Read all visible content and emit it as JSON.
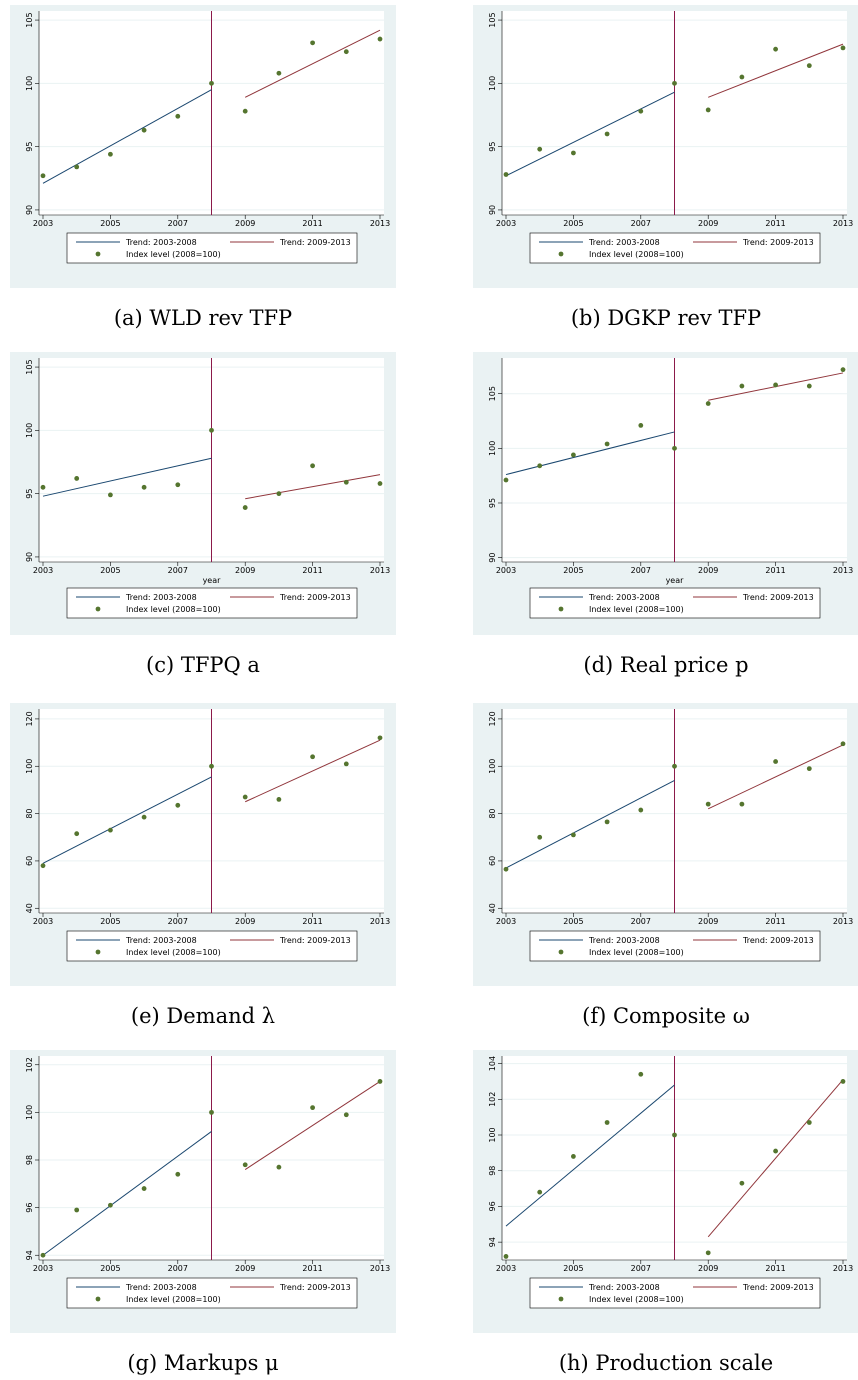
{
  "chart_data": [
    {
      "type": "scatter",
      "caption": "(a) WLD rev TFP",
      "xlim": [
        2003,
        2013
      ],
      "xticks": [
        2003,
        2005,
        2007,
        2009,
        2011,
        2013
      ],
      "ylim": [
        89.6,
        105.4
      ],
      "yticks": [
        90,
        95,
        100,
        105
      ],
      "grid": true,
      "vline": 2008,
      "vline_color": "#8b1a4a",
      "series": [
        {
          "name": "Trend: 2003-2008",
          "type": "line",
          "color": "#1a476f",
          "x": [
            2003,
            2008
          ],
          "values": [
            92.1,
            99.5
          ]
        },
        {
          "name": "Trend: 2009-2013",
          "type": "line",
          "color": "#90353b",
          "x": [
            2009,
            2013
          ],
          "values": [
            98.9,
            104.2
          ]
        },
        {
          "name": "Index level (2008=100)",
          "type": "scatter",
          "color": "#55752f",
          "x": [
            2003,
            2004,
            2005,
            2006,
            2007,
            2008,
            2009,
            2010,
            2011,
            2012,
            2013
          ],
          "values": [
            92.7,
            93.4,
            94.4,
            96.3,
            97.4,
            100,
            97.8,
            100.8,
            103.2,
            102.5,
            103.5
          ]
        }
      ]
    },
    {
      "type": "scatter",
      "caption": "(b) DGKP rev TFP",
      "xlim": [
        2003,
        2013
      ],
      "xticks": [
        2003,
        2005,
        2007,
        2009,
        2011,
        2013
      ],
      "ylim": [
        89.6,
        105.4
      ],
      "yticks": [
        90,
        95,
        100,
        105
      ],
      "grid": true,
      "vline": 2008,
      "vline_color": "#8b1a4a",
      "series": [
        {
          "name": "Trend: 2003-2008",
          "type": "line",
          "color": "#1a476f",
          "x": [
            2003,
            2008
          ],
          "values": [
            92.7,
            99.3
          ]
        },
        {
          "name": "Trend: 2009-2013",
          "type": "line",
          "color": "#90353b",
          "x": [
            2009,
            2013
          ],
          "values": [
            98.9,
            103.1
          ]
        },
        {
          "name": "Index level (2008=100)",
          "type": "scatter",
          "color": "#55752f",
          "x": [
            2003,
            2004,
            2005,
            2006,
            2007,
            2008,
            2009,
            2010,
            2011,
            2012,
            2013
          ],
          "values": [
            92.8,
            94.8,
            94.5,
            96.0,
            97.8,
            100,
            97.9,
            100.5,
            102.7,
            101.4,
            102.8
          ]
        }
      ]
    },
    {
      "type": "scatter",
      "caption": "(c) TFPQ a",
      "x_label": "year",
      "xlim": [
        2003,
        2013
      ],
      "xticks": [
        2003,
        2005,
        2007,
        2009,
        2011,
        2013
      ],
      "ylim": [
        89.6,
        105.4
      ],
      "yticks": [
        90,
        95,
        100,
        105
      ],
      "grid": true,
      "vline": 2008,
      "vline_color": "#8b1a4a",
      "series": [
        {
          "name": "Trend: 2003-2008",
          "type": "line",
          "color": "#1a476f",
          "x": [
            2003,
            2008
          ],
          "values": [
            94.8,
            97.8
          ]
        },
        {
          "name": "Trend: 2009-2013",
          "type": "line",
          "color": "#90353b",
          "x": [
            2009,
            2013
          ],
          "values": [
            94.6,
            96.5
          ]
        },
        {
          "name": "Index level (2008=100)",
          "type": "scatter",
          "color": "#55752f",
          "x": [
            2003,
            2004,
            2005,
            2006,
            2007,
            2008,
            2009,
            2010,
            2011,
            2012,
            2013
          ],
          "values": [
            95.5,
            96.2,
            94.9,
            95.5,
            95.7,
            100,
            93.9,
            95.0,
            97.2,
            95.9,
            95.8
          ]
        }
      ]
    },
    {
      "type": "scatter",
      "caption": "(d) Real price p",
      "x_label": "year",
      "xlim": [
        2003,
        2013
      ],
      "xticks": [
        2003,
        2005,
        2007,
        2009,
        2011,
        2013
      ],
      "ylim": [
        89.6,
        107.9
      ],
      "yticks": [
        90,
        95,
        100,
        105
      ],
      "grid": true,
      "vline": 2008,
      "vline_color": "#8b1a4a",
      "series": [
        {
          "name": "Trend: 2003-2008",
          "type": "line",
          "color": "#1a476f",
          "x": [
            2003,
            2008
          ],
          "values": [
            97.6,
            101.5
          ]
        },
        {
          "name": "Trend: 2009-2013",
          "type": "line",
          "color": "#90353b",
          "x": [
            2009,
            2013
          ],
          "values": [
            104.4,
            106.9
          ]
        },
        {
          "name": "Index level (2008=100)",
          "type": "scatter",
          "color": "#55752f",
          "x": [
            2003,
            2004,
            2005,
            2006,
            2007,
            2008,
            2009,
            2010,
            2011,
            2012,
            2013
          ],
          "values": [
            97.1,
            98.4,
            99.4,
            100.4,
            102.1,
            100,
            104.1,
            105.7,
            105.8,
            105.7,
            107.2
          ]
        }
      ]
    },
    {
      "type": "scatter",
      "caption": "(e) Demand λ",
      "xlim": [
        2003,
        2013
      ],
      "xticks": [
        2003,
        2005,
        2007,
        2009,
        2011,
        2013
      ],
      "ylim": [
        38,
        122.5
      ],
      "yticks": [
        40,
        60,
        80,
        100,
        120
      ],
      "grid": true,
      "vline": 2008,
      "vline_color": "#8b1a4a",
      "series": [
        {
          "name": "Trend: 2003-2008",
          "type": "line",
          "color": "#1a476f",
          "x": [
            2003,
            2008
          ],
          "values": [
            59,
            95.5
          ]
        },
        {
          "name": "Trend: 2009-2013",
          "type": "line",
          "color": "#90353b",
          "x": [
            2009,
            2013
          ],
          "values": [
            85,
            111
          ]
        },
        {
          "name": "Index level (2008=100)",
          "type": "scatter",
          "color": "#55752f",
          "x": [
            2003,
            2004,
            2005,
            2006,
            2007,
            2008,
            2009,
            2010,
            2011,
            2012,
            2013
          ],
          "values": [
            58,
            71.5,
            73,
            78.5,
            83.5,
            100,
            87,
            86,
            104,
            101,
            112
          ]
        }
      ]
    },
    {
      "type": "scatter",
      "caption": "(f) Composite ω",
      "xlim": [
        2003,
        2013
      ],
      "xticks": [
        2003,
        2005,
        2007,
        2009,
        2011,
        2013
      ],
      "ylim": [
        38,
        122.5
      ],
      "yticks": [
        40,
        60,
        80,
        100,
        120
      ],
      "grid": true,
      "vline": 2008,
      "vline_color": "#8b1a4a",
      "series": [
        {
          "name": "Trend: 2003-2008",
          "type": "line",
          "color": "#1a476f",
          "x": [
            2003,
            2008
          ],
          "values": [
            57,
            94
          ]
        },
        {
          "name": "Trend: 2009-2013",
          "type": "line",
          "color": "#90353b",
          "x": [
            2009,
            2013
          ],
          "values": [
            82,
            109
          ]
        },
        {
          "name": "Index level (2008=100)",
          "type": "scatter",
          "color": "#55752f",
          "x": [
            2003,
            2004,
            2005,
            2006,
            2007,
            2008,
            2009,
            2010,
            2011,
            2012,
            2013
          ],
          "values": [
            56.5,
            70,
            71,
            76.5,
            81.5,
            100,
            84,
            84,
            102,
            99,
            109.5
          ]
        }
      ]
    },
    {
      "type": "scatter",
      "caption": "(g) Markups μ",
      "xlim": [
        2003,
        2013
      ],
      "xticks": [
        2003,
        2005,
        2007,
        2009,
        2011,
        2013
      ],
      "ylim": [
        93.8,
        102.2
      ],
      "yticks": [
        94,
        96,
        98,
        100,
        102
      ],
      "grid": true,
      "vline": 2008,
      "vline_color": "#8b1a4a",
      "series": [
        {
          "name": "Trend: 2003-2008",
          "type": "line",
          "color": "#1a476f",
          "x": [
            2003,
            2008
          ],
          "values": [
            94.0,
            99.2
          ]
        },
        {
          "name": "Trend: 2009-2013",
          "type": "line",
          "color": "#90353b",
          "x": [
            2009,
            2013
          ],
          "values": [
            97.6,
            101.3
          ]
        },
        {
          "name": "Index level (2008=100)",
          "type": "scatter",
          "color": "#55752f",
          "x": [
            2003,
            2004,
            2005,
            2006,
            2007,
            2008,
            2009,
            2010,
            2011,
            2012,
            2013
          ],
          "values": [
            94.0,
            95.9,
            96.1,
            96.8,
            97.4,
            100,
            97.8,
            97.7,
            100.2,
            99.9,
            101.3
          ]
        }
      ]
    },
    {
      "type": "scatter",
      "caption": "(h) Production scale",
      "xlim": [
        2003,
        2013
      ],
      "xticks": [
        2003,
        2005,
        2007,
        2009,
        2011,
        2013
      ],
      "ylim": [
        93,
        104.2
      ],
      "yticks": [
        94,
        96,
        98,
        100,
        102,
        104
      ],
      "grid": true,
      "vline": 2008,
      "vline_color": "#8b1a4a",
      "series": [
        {
          "name": "Trend: 2003-2008",
          "type": "line",
          "color": "#1a476f",
          "x": [
            2003,
            2008
          ],
          "values": [
            94.9,
            102.8
          ]
        },
        {
          "name": "Trend: 2009-2013",
          "type": "line",
          "color": "#90353b",
          "x": [
            2009,
            2013
          ],
          "values": [
            94.3,
            103.1
          ]
        },
        {
          "name": "Index level (2008=100)",
          "type": "scatter",
          "color": "#55752f",
          "x": [
            2003,
            2004,
            2005,
            2006,
            2007,
            2008,
            2009,
            2010,
            2011,
            2012,
            2013
          ],
          "values": [
            93.2,
            96.8,
            98.8,
            100.7,
            103.4,
            100,
            93.4,
            97.3,
            99.1,
            100.7,
            103.0
          ]
        }
      ]
    }
  ]
}
